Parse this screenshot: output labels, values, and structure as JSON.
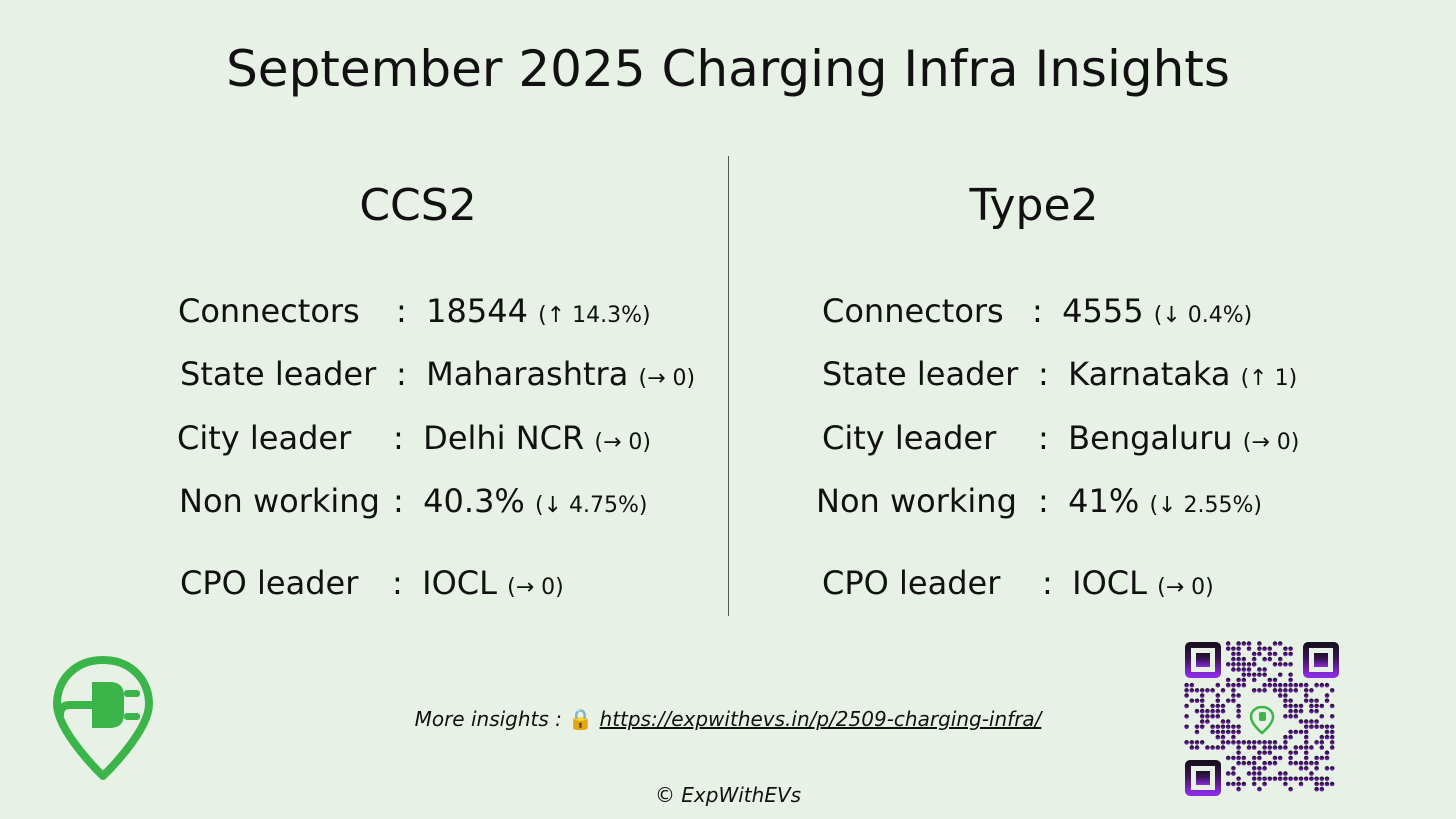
{
  "title": "September 2025 Charging Infra Insights",
  "colors": {
    "background": "#e8f1e5",
    "brand_green": "#3bb54a",
    "qr_purple": "#7a22b8"
  },
  "ccs2": {
    "heading": "CCS2",
    "rows": [
      {
        "label": "Connectors",
        "sep": ":",
        "value": "18544",
        "change": "(↑ 14.3%)"
      },
      {
        "label": "State leader",
        "sep": ":",
        "value": "Maharashtra",
        "change": "(→ 0)"
      },
      {
        "label": "City leader",
        "sep": ":",
        "value": "Delhi NCR",
        "change": "(→ 0)"
      },
      {
        "label": "Non working",
        "sep": ":",
        "value": "40.3%",
        "change": "(↓ 4.75%)"
      },
      {
        "label": "CPO leader",
        "sep": ":",
        "value": "IOCL",
        "change": "(→ 0)"
      }
    ]
  },
  "type2": {
    "heading": "Type2",
    "rows": [
      {
        "label": "Connectors",
        "sep": ":",
        "value": "4555",
        "change": "(↓ 0.4%)"
      },
      {
        "label": "State leader",
        "sep": ":",
        "value": "Karnataka",
        "change": "(↑ 1)"
      },
      {
        "label": "City leader",
        "sep": ":",
        "value": "Bengaluru",
        "change": "(→ 0)"
      },
      {
        "label": "Non working",
        "sep": ":",
        "value": "41%",
        "change": "(↓ 2.55%)"
      },
      {
        "label": "CPO leader",
        "sep": ":",
        "value": "IOCL",
        "change": "(→ 0)"
      }
    ]
  },
  "footer": {
    "more_label": "More insights :",
    "lock_icon": "🔒",
    "link": "https://expwithevs.in/p/2509-charging-infra/",
    "copyright": "© ExpWithEVs"
  },
  "icons": {
    "logo": "ev-charging-pin-icon",
    "qr": "qr-code"
  }
}
